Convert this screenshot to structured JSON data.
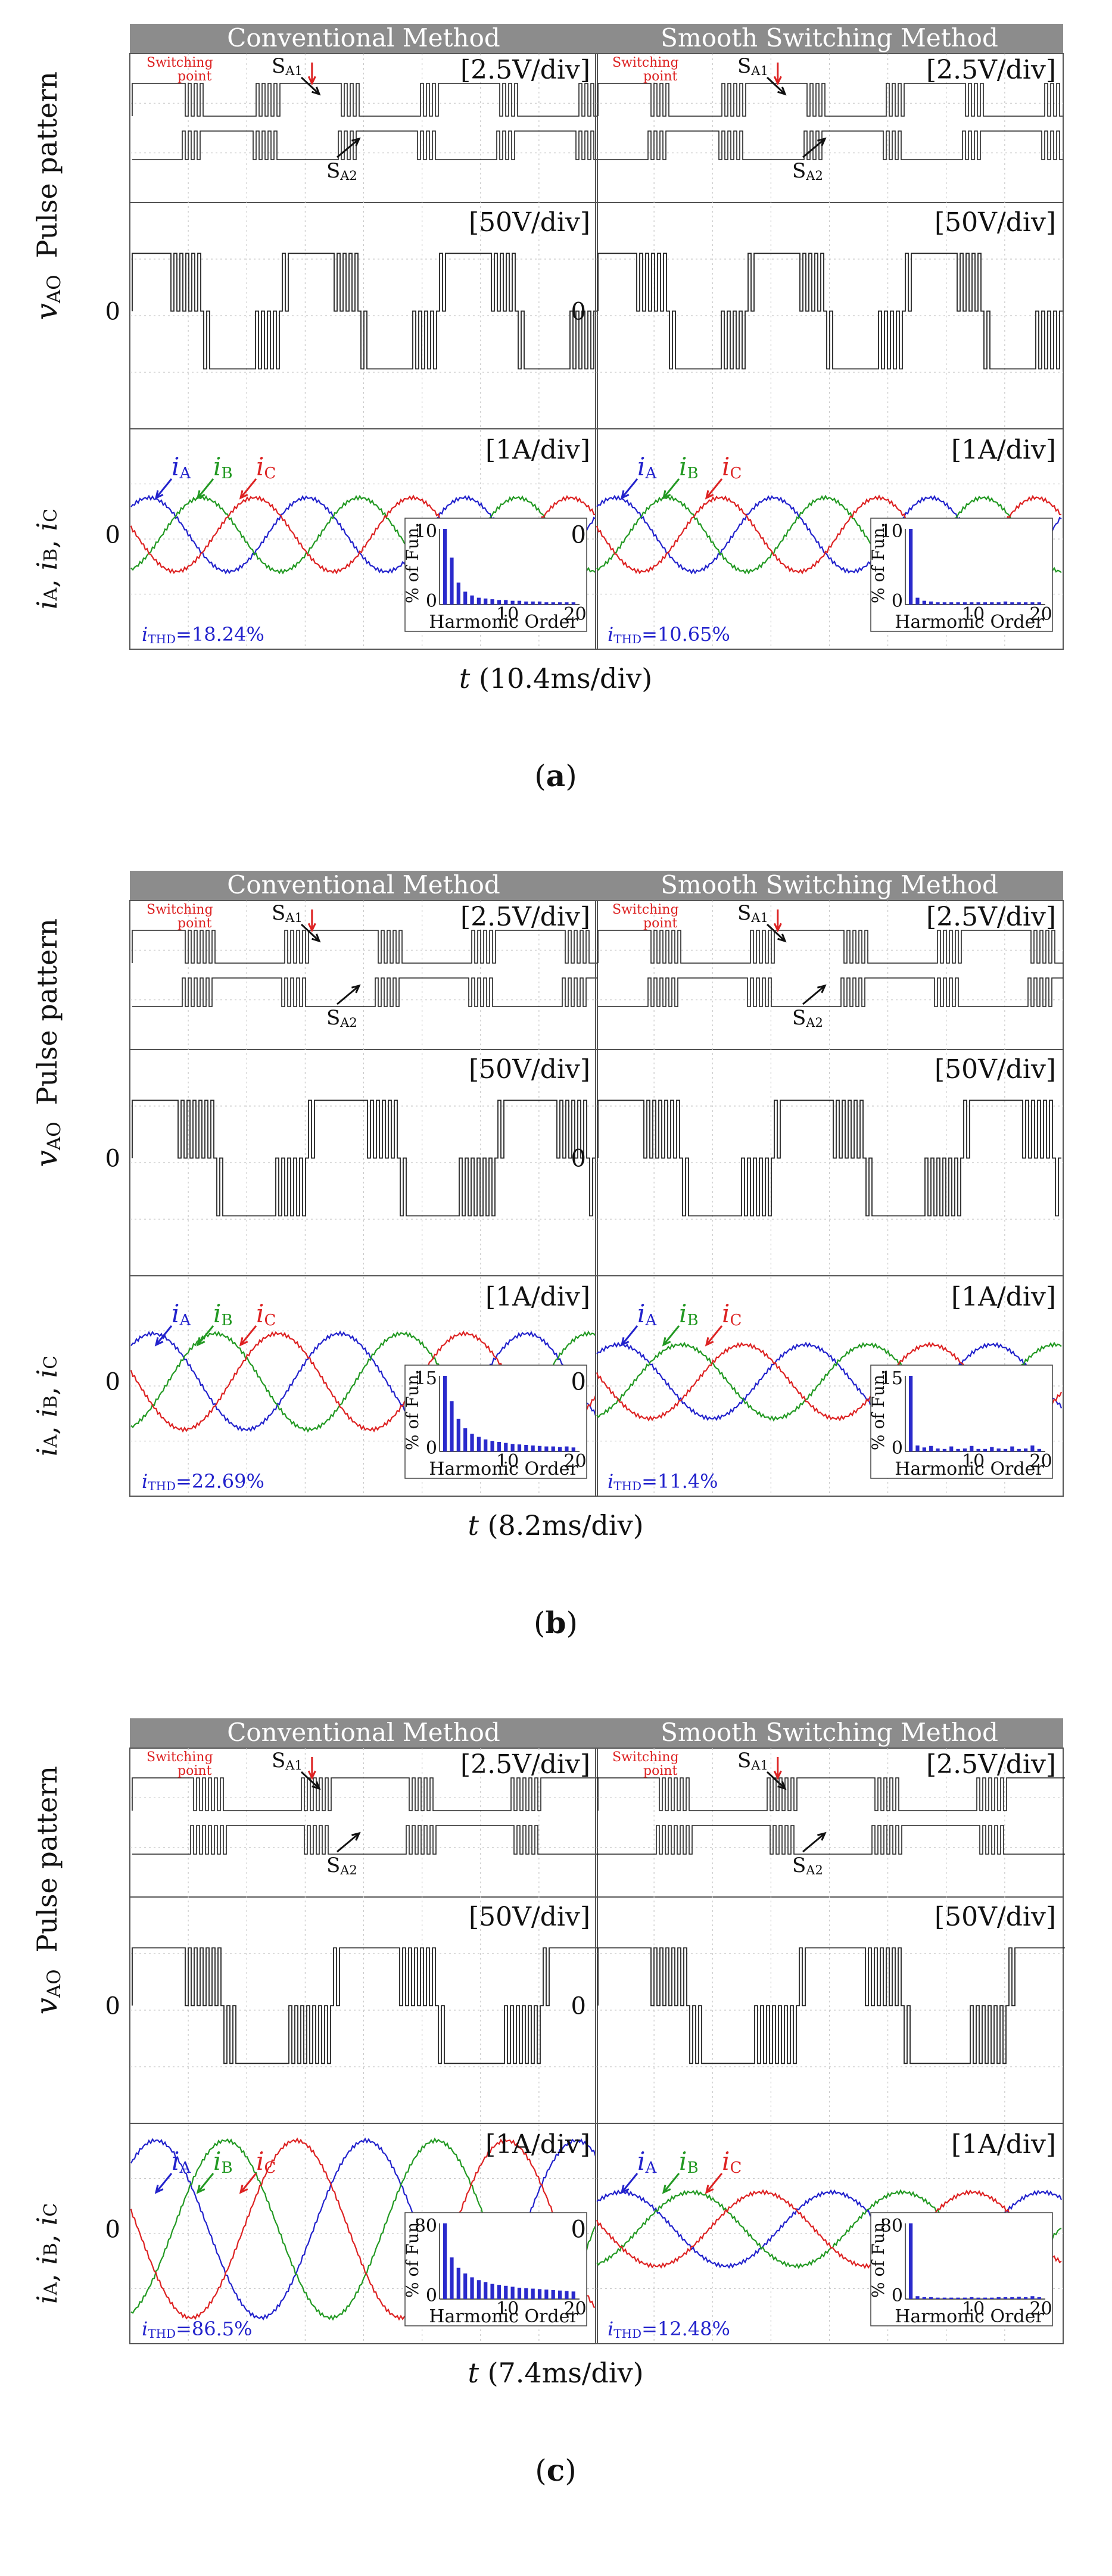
{
  "labels": {
    "pulse_axis": "Pulse pattern",
    "vao_axis_main": "v",
    "vao_axis_sub": "AO",
    "current_axis_i1": "i",
    "current_axis_s1": "A",
    "current_axis_i2": "i",
    "current_axis_s2": "B",
    "current_axis_i3": "i",
    "current_axis_s3": "C",
    "switching_point_1": "Switching",
    "switching_point_2": "point",
    "sa1_main": "S",
    "sa1_sub": "A1",
    "sa2_main": "S",
    "sa2_sub": "A2",
    "scale_pulse": "[2.5V/div]",
    "scale_voltage": "[50V/div]",
    "scale_current": "[1A/div]",
    "zero": "0",
    "ia_main": "i",
    "ia_sub": "A",
    "ib_main": "i",
    "ib_sub": "B",
    "ic_main": "i",
    "ic_sub": "C",
    "thd_main": "i",
    "thd_sub": "THD",
    "inset_xlabel": "Harmonic Order",
    "inset_ylabel": "% of Fun.",
    "time_prefix": "t"
  },
  "colors": {
    "phase_a": "#2222cc",
    "phase_b": "#229922",
    "phase_c": "#dd2222",
    "header_bg": "#8c8c8c",
    "trace": "#222222",
    "bar": "#2a2acc"
  },
  "chart_data": [
    {
      "id": "a",
      "type": "oscilloscope",
      "caption": "a",
      "time_label": "(10.4ms/div)",
      "scope_shape": {
        "pulse_period_divs": 2.7,
        "voltage_period_divs": 2.7,
        "current_period_divs": 2.7,
        "conv_pre_amp": 1.0,
        "switch_div": 3.3
      },
      "panels": [
        {
          "title": "Conventional Method",
          "thd_text": "=18.24%",
          "inset": {
            "ymax": 10,
            "xticks": [
              10,
              20
            ],
            "bars": [
              10,
              6.2,
              2.9,
              1.7,
              1.2,
              0.9,
              0.8,
              0.7,
              0.6,
              0.6,
              0.5,
              0.5,
              0.4,
              0.4,
              0.4,
              0.3,
              0.3,
              0.3,
              0.3,
              0.3
            ]
          }
        },
        {
          "title": "Smooth Switching Method",
          "thd_text": "=10.65%",
          "inset": {
            "ymax": 10,
            "xticks": [
              10,
              20
            ],
            "bars": [
              10,
              0.9,
              0.5,
              0.4,
              0.3,
              0.3,
              0.3,
              0.3,
              0.3,
              0.3,
              0.3,
              0.3,
              0.3,
              0.3,
              0.4,
              0.3,
              0.3,
              0.3,
              0.3,
              0.3
            ]
          }
        }
      ]
    },
    {
      "id": "b",
      "type": "oscilloscope",
      "caption": "b",
      "time_label": "(8.2ms/div)",
      "scope_shape": {
        "pulse_period_divs": 3.2,
        "voltage_period_divs": 3.2,
        "current_period_divs": 3.2,
        "conv_pre_amp": 1.3,
        "switch_div": 3.3
      },
      "panels": [
        {
          "title": "Conventional Method",
          "thd_text": "=22.69%",
          "inset": {
            "ymax": 15,
            "xticks": [
              10,
              20
            ],
            "bars": [
              15,
              10,
              6.5,
              4.6,
              3.5,
              2.9,
              2.4,
              2.1,
              1.9,
              1.7,
              1.5,
              1.4,
              1.3,
              1.2,
              1.1,
              1.0,
              1.0,
              0.9,
              1.0,
              0.8
            ]
          }
        },
        {
          "title": "Smooth Switching Method",
          "thd_text": "=11.4%",
          "inset": {
            "ymax": 15,
            "xticks": [
              10,
              20
            ],
            "bars": [
              15,
              1.2,
              0.8,
              1.1,
              0.6,
              0.5,
              1.0,
              0.5,
              0.6,
              1.1,
              0.5,
              0.5,
              0.9,
              0.6,
              0.5,
              1.0,
              0.5,
              0.6,
              1.2,
              0.5
            ]
          }
        }
      ]
    },
    {
      "id": "c",
      "type": "oscilloscope",
      "caption": "c",
      "time_label": "(7.4ms/div)",
      "scope_shape": {
        "pulse_period_divs": 3.6,
        "voltage_period_divs": 3.6,
        "current_period_divs": 3.6,
        "conv_pre_amp": 2.4,
        "switch_div": 3.3
      },
      "panels": [
        {
          "title": "Conventional Method",
          "thd_text": "=86.5%",
          "inset": {
            "ymax": 80,
            "xticks": [
              10,
              20
            ],
            "bars": [
              80,
              44,
              33,
              27,
              23,
              20,
              18,
              16,
              15,
              14,
              13,
              12,
              11.5,
              11,
              10.5,
              10,
              9.5,
              9,
              8.5,
              8
            ]
          }
        },
        {
          "title": "Smooth Switching Method",
          "thd_text": "=12.48%",
          "inset": {
            "ymax": 80,
            "xticks": [
              10,
              20
            ],
            "bars": [
              80,
              3,
              2,
              2,
              1.5,
              1.5,
              1.5,
              1.5,
              1.5,
              2,
              1.5,
              1.5,
              1.5,
              2,
              2,
              2,
              2.5,
              2,
              3,
              2
            ]
          }
        }
      ]
    }
  ]
}
